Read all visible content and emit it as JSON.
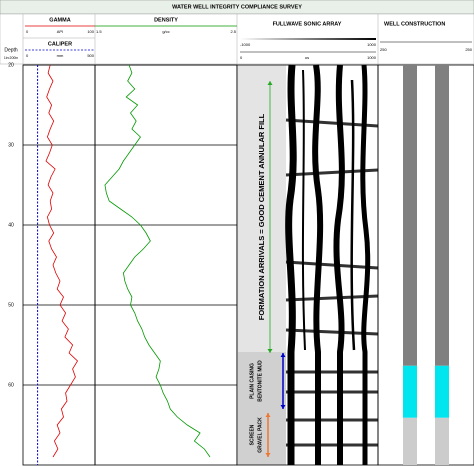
{
  "title": "WATER WELL INTEGRITY COMPLIANCE SURVEY",
  "depth_axis": {
    "label": "Depth",
    "scale": "1in:200in",
    "lim": [
      20,
      70
    ],
    "ticks": [
      20,
      30,
      40,
      50,
      60
    ]
  },
  "chart_data": [
    {
      "type": "line",
      "unit": "API",
      "xlim": [
        0,
        100
      ],
      "xticks": [
        0,
        100
      ],
      "series": [
        {
          "name": "GAMMA",
          "color": "#e00000",
          "dash": false,
          "depth": [
            20,
            21,
            22,
            23,
            24,
            25,
            26,
            27,
            28,
            29,
            30,
            31,
            32,
            33,
            34,
            35,
            36,
            37,
            38,
            39,
            40,
            41,
            42,
            43,
            44,
            45,
            46,
            47,
            48,
            49,
            50,
            51,
            52,
            53,
            54,
            55,
            56,
            57,
            58,
            59,
            60,
            61,
            62,
            63,
            64,
            65,
            66,
            67,
            68,
            69
          ],
          "values": [
            36,
            33,
            40,
            35,
            31,
            38,
            34,
            41,
            36,
            32,
            39,
            35,
            30,
            43,
            37,
            33,
            40,
            36,
            38,
            32,
            35,
            41,
            34,
            38,
            45,
            40,
            44,
            50,
            46,
            55,
            50,
            58,
            53,
            62,
            57,
            68,
            63,
            75,
            68,
            72,
            65,
            58,
            60,
            52,
            55,
            46,
            50,
            42,
            47,
            40
          ]
        }
      ]
    },
    {
      "type": "line",
      "unit": "mm",
      "xlim": [
        0,
        500
      ],
      "xticks": [
        0,
        500
      ],
      "series": [
        {
          "name": "CALIPER",
          "color": "#0000cc",
          "dash": true,
          "depth": [
            20,
            70
          ],
          "values": [
            90,
            90
          ]
        }
      ]
    },
    {
      "type": "line",
      "unit": "g/cc",
      "xlim": [
        1.5,
        2.5
      ],
      "xticks": [
        1.5,
        2.5
      ],
      "series": [
        {
          "name": "DENSITY",
          "color": "#009900",
          "dash": false,
          "depth": [
            20,
            21,
            22,
            23,
            24,
            25,
            26,
            27,
            28,
            29,
            30,
            31,
            32,
            33,
            34,
            35,
            36,
            37,
            38,
            39,
            40,
            41,
            42,
            43,
            44,
            45,
            46,
            47,
            48,
            49,
            50,
            51,
            52,
            53,
            54,
            55,
            56,
            57,
            58,
            59,
            60,
            61,
            62,
            63,
            64,
            65,
            66,
            67,
            68,
            69
          ],
          "values": [
            1.74,
            1.76,
            1.73,
            1.78,
            1.72,
            1.8,
            1.75,
            1.79,
            1.76,
            1.82,
            1.78,
            1.74,
            1.7,
            1.67,
            1.62,
            1.57,
            1.58,
            1.6,
            1.68,
            1.76,
            1.82,
            1.86,
            1.89,
            1.84,
            1.78,
            1.74,
            1.7,
            1.71,
            1.73,
            1.76,
            1.75,
            1.78,
            1.8,
            1.83,
            1.85,
            1.88,
            1.92,
            1.96,
            1.95,
            1.93,
            1.96,
            1.98,
            2.01,
            2.03,
            2.08,
            2.15,
            2.24,
            2.2,
            2.27,
            2.31
          ]
        }
      ]
    }
  ],
  "sonic": {
    "title": "FULLWAVE SONIC ARRAY",
    "amplitude_ticks": [
      -1000,
      1000
    ],
    "time_unit": "us",
    "time_ticks": [
      0,
      1000
    ],
    "annotations": [
      {
        "lines": [
          "FORMATION ARRIVALS = GOOD CEMENT ANNULAR FILL"
        ],
        "top": 22,
        "bottom": 56,
        "color": "#22aa22"
      },
      {
        "lines": [
          "PLAIN CASING",
          "BENTONITE MUD"
        ],
        "top": 56,
        "bottom": 63,
        "color": "#0000cc"
      },
      {
        "lines": [
          "SCREEN",
          "GRAVEL PACK"
        ],
        "top": 63.5,
        "bottom": 69,
        "color": "#ee7733"
      }
    ]
  },
  "well_construction": {
    "title": "WELL CONSTRUCTION",
    "scale_labels": [
      250,
      250
    ],
    "intervals": [
      {
        "top": 20,
        "bottom": 57.6,
        "color": "#808080"
      },
      {
        "top": 57.6,
        "bottom": 64.1,
        "color": "#00e5ee"
      },
      {
        "top": 64.1,
        "bottom": 70,
        "color": "#cccccc"
      }
    ]
  }
}
